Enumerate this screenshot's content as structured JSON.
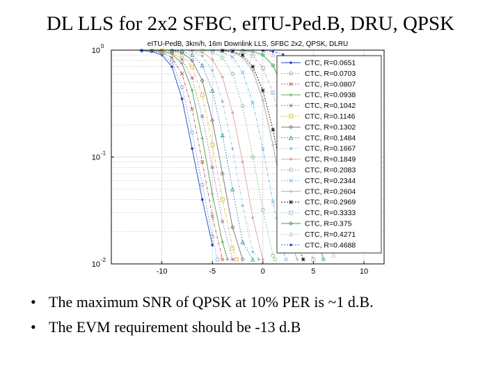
{
  "slide": {
    "title": "DL LLS for 2x2 SFBC, eITU-Ped.B, DRU, QPSK",
    "bullets": [
      "The maximum SNR of QPSK at 10% PER is ~1 d.B.",
      "The EVM requirement should be -13 d.B"
    ]
  },
  "chart_data": {
    "type": "line",
    "title": "eITU-PedB, 3km/h, 16m Downlink LLS, SFBC 2x2, QPSK, DLRU",
    "xlabel": "",
    "ylabel": "",
    "xlim": [
      -15,
      12
    ],
    "ylim": [
      0.01,
      1
    ],
    "yscale": "log",
    "grid": true,
    "legend_position": "right",
    "x_ticks": [
      -10,
      -5,
      0,
      5,
      10
    ],
    "y_ticks": [
      1,
      0.1,
      0.01
    ],
    "y_tick_labels": [
      {
        "base": "10",
        "exp": "0"
      },
      {
        "base": "10",
        "exp": "-1"
      },
      {
        "base": "10",
        "exp": "-2"
      }
    ],
    "series": [
      {
        "name": "CTC, R=0.0651",
        "color": "#1f3fbf",
        "x": [
          -12,
          -11,
          -10,
          -9,
          -8,
          -7,
          -6,
          -5
        ],
        "y": [
          0.99,
          0.97,
          0.9,
          0.7,
          0.35,
          0.12,
          0.04,
          0.015
        ]
      },
      {
        "name": "CTC, R=0.0703",
        "color": "#6aa0d8",
        "x": [
          -12,
          -11,
          -10,
          -9,
          -8,
          -7,
          -6,
          -5,
          -4.5
        ],
        "y": [
          0.99,
          0.98,
          0.93,
          0.78,
          0.45,
          0.17,
          0.055,
          0.018,
          0.011
        ]
      },
      {
        "name": "CTC, R=0.0807",
        "color": "#c04040",
        "x": [
          -11,
          -10,
          -9,
          -8,
          -7,
          -6,
          -5,
          -4
        ],
        "y": [
          0.99,
          0.96,
          0.85,
          0.6,
          0.28,
          0.09,
          0.028,
          0.011
        ]
      },
      {
        "name": "CTC, R=0.0938",
        "color": "#40a040",
        "x": [
          -11,
          -10,
          -9,
          -8,
          -7,
          -6,
          -5,
          -4,
          -3.5
        ],
        "y": [
          0.99,
          0.98,
          0.92,
          0.75,
          0.42,
          0.15,
          0.045,
          0.016,
          0.011
        ]
      },
      {
        "name": "CTC, R=0.1042",
        "color": "#b070c0",
        "x": [
          -10,
          -9,
          -8,
          -7,
          -6,
          -5,
          -4,
          -3
        ],
        "y": [
          0.99,
          0.95,
          0.82,
          0.55,
          0.24,
          0.08,
          0.025,
          0.011
        ]
      },
      {
        "name": "CTC, R=0.1146",
        "color": "#d0c030",
        "x": [
          -10,
          -9,
          -8,
          -7,
          -6,
          -5,
          -4,
          -3,
          -2.6
        ],
        "y": [
          0.99,
          0.97,
          0.9,
          0.7,
          0.38,
          0.13,
          0.04,
          0.014,
          0.011
        ]
      },
      {
        "name": "CTC, R=0.1302",
        "color": "#707070",
        "x": [
          -9,
          -8,
          -7,
          -6,
          -5,
          -4,
          -3,
          -2
        ],
        "y": [
          0.99,
          0.95,
          0.8,
          0.52,
          0.22,
          0.07,
          0.022,
          0.011
        ]
      },
      {
        "name": "CTC, R=0.1484",
        "color": "#3090a0",
        "x": [
          -9,
          -8,
          -7,
          -6,
          -5,
          -4,
          -3,
          -2,
          -1
        ],
        "y": [
          0.99,
          0.98,
          0.9,
          0.72,
          0.42,
          0.16,
          0.05,
          0.016,
          0.011
        ]
      },
      {
        "name": "CTC, R=0.1667",
        "color": "#90c0e0",
        "x": [
          -8,
          -7,
          -6,
          -5,
          -4,
          -3,
          -2,
          -1,
          -0.4
        ],
        "y": [
          0.99,
          0.97,
          0.88,
          0.65,
          0.33,
          0.12,
          0.035,
          0.013,
          0.011
        ]
      },
      {
        "name": "CTC, R=0.1849",
        "color": "#e0a0a0",
        "x": [
          -7,
          -6,
          -5,
          -4,
          -3,
          -2,
          -1,
          0
        ],
        "y": [
          0.99,
          0.95,
          0.82,
          0.56,
          0.26,
          0.09,
          0.027,
          0.011
        ]
      },
      {
        "name": "CTC, R=0.2083",
        "color": "#80c080",
        "x": [
          -6,
          -5,
          -4,
          -3,
          -2,
          -1,
          0,
          1,
          1.2
        ],
        "y": [
          0.99,
          0.96,
          0.85,
          0.6,
          0.3,
          0.1,
          0.032,
          0.012,
          0.011
        ]
      },
      {
        "name": "CTC, R=0.2344",
        "color": "#60b0e0",
        "x": [
          -5,
          -4,
          -3,
          -2,
          -1,
          0,
          1,
          2,
          2.3
        ],
        "y": [
          0.99,
          0.96,
          0.86,
          0.62,
          0.32,
          0.12,
          0.038,
          0.013,
          0.011
        ]
      },
      {
        "name": "CTC, R=0.2604",
        "color": "#a0a0a0",
        "x": [
          -4,
          -3,
          -2,
          -1,
          0,
          1,
          2,
          3,
          3.4
        ],
        "y": [
          0.99,
          0.96,
          0.86,
          0.64,
          0.34,
          0.13,
          0.04,
          0.014,
          0.011
        ]
      },
      {
        "name": "CTC, R=0.2969",
        "color": "#000000",
        "x": [
          -4,
          -3,
          -2,
          -1,
          0,
          1,
          2,
          3,
          4
        ],
        "y": [
          0.99,
          0.97,
          0.9,
          0.7,
          0.42,
          0.18,
          0.06,
          0.02,
          0.011
        ]
      },
      {
        "name": "CTC, R=0.3333",
        "color": "#a0b0c0",
        "x": [
          -3,
          -2,
          -1,
          0,
          1,
          2,
          3,
          4,
          5
        ],
        "y": [
          0.99,
          0.97,
          0.88,
          0.68,
          0.4,
          0.17,
          0.058,
          0.02,
          0.011
        ]
      },
      {
        "name": "CTC, R=0.375",
        "color": "#30a050",
        "x": [
          -2,
          -1,
          0,
          1,
          2,
          3,
          4,
          5,
          6
        ],
        "y": [
          0.99,
          0.97,
          0.9,
          0.72,
          0.45,
          0.2,
          0.07,
          0.024,
          0.011
        ]
      },
      {
        "name": "CTC, R=0.4271",
        "color": "#c0c0d0",
        "x": [
          -1,
          0,
          1,
          2,
          3,
          4,
          5,
          6,
          7
        ],
        "y": [
          0.99,
          0.97,
          0.9,
          0.74,
          0.48,
          0.23,
          0.085,
          0.03,
          0.012
        ]
      },
      {
        "name": "CTC, R=0.4688",
        "color": "#2050c0",
        "x": [
          0,
          1,
          2,
          3,
          4,
          5,
          6,
          7,
          8
        ],
        "y": [
          0.99,
          0.97,
          0.91,
          0.76,
          0.5,
          0.25,
          0.1,
          0.035,
          0.013
        ]
      }
    ]
  }
}
